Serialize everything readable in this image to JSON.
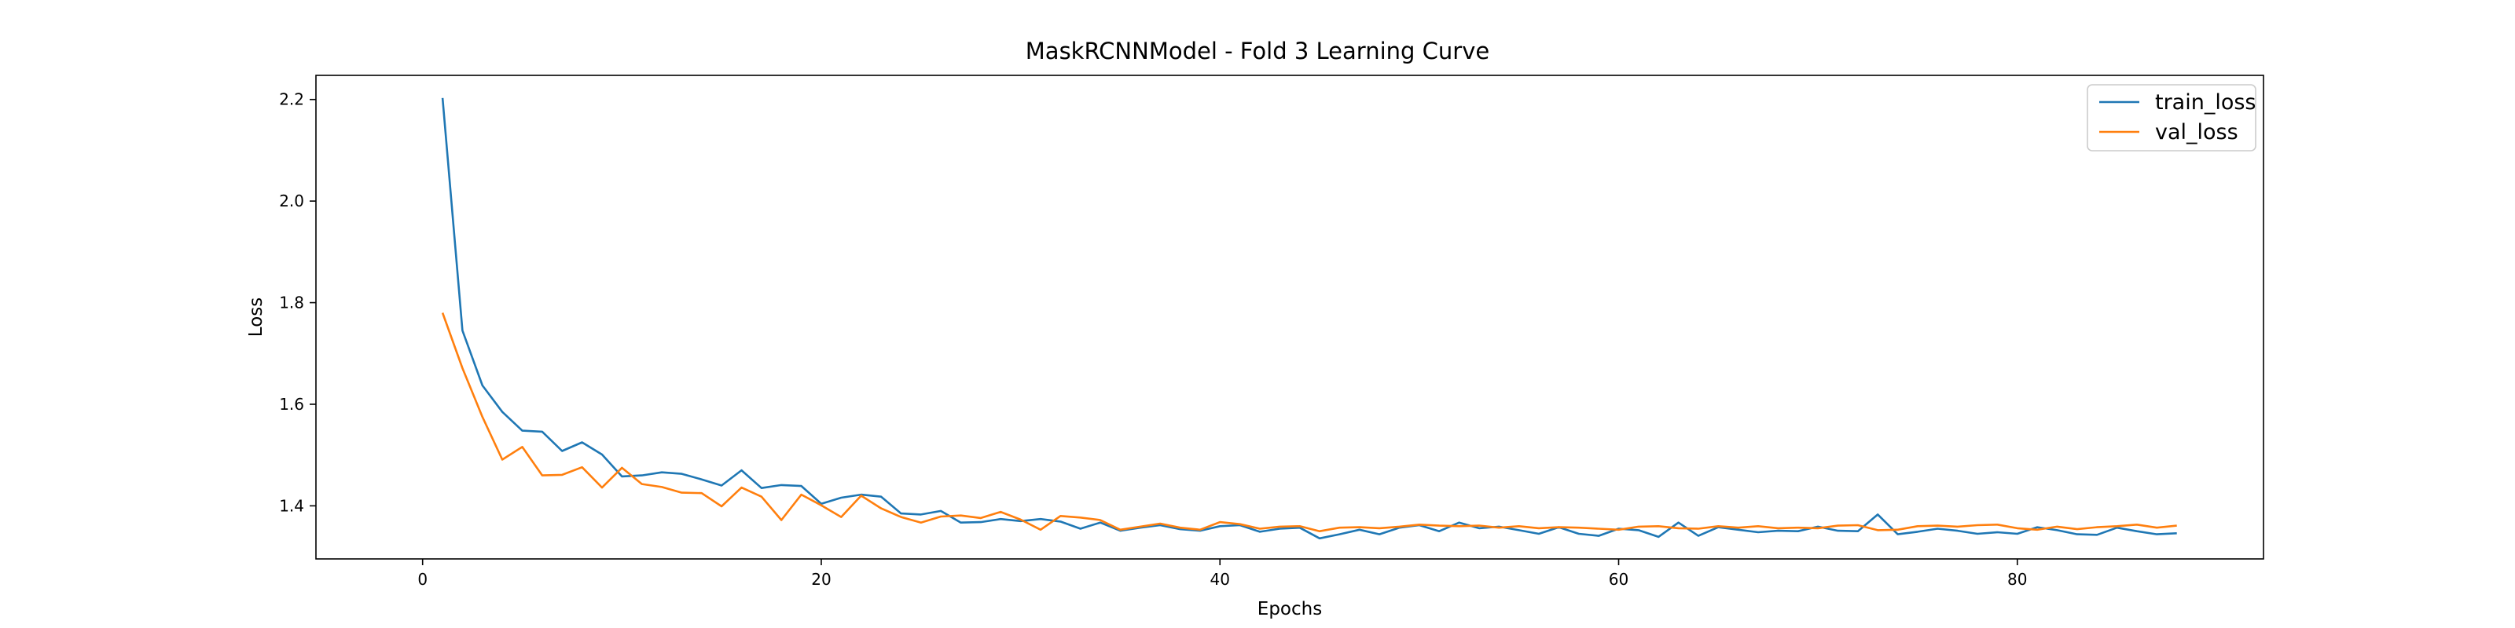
{
  "chart_data": {
    "type": "line",
    "title": "MaskRCNNModel - Fold 3 Learning Curve",
    "xlabel": "Epochs",
    "ylabel": "Loss",
    "xlim": [
      -5.35,
      92.35
    ],
    "ylim": [
      1.2955,
      2.2475
    ],
    "xticks": [
      0,
      20,
      40,
      60,
      80
    ],
    "yticks": [
      1.4,
      1.6,
      1.8,
      2.0,
      2.2
    ],
    "yticks_labels": [
      "1.4",
      "1.6",
      "1.8",
      "2.0",
      "2.2"
    ],
    "legend_position": "top-right",
    "grid": false,
    "x": [
      1,
      2,
      3,
      4,
      5,
      6,
      7,
      8,
      9,
      10,
      11,
      12,
      13,
      14,
      15,
      16,
      17,
      18,
      19,
      20,
      21,
      22,
      23,
      24,
      25,
      26,
      27,
      28,
      29,
      30,
      31,
      32,
      33,
      34,
      35,
      36,
      37,
      38,
      39,
      40,
      41,
      42,
      43,
      44,
      45,
      46,
      47,
      48,
      49,
      50,
      51,
      52,
      53,
      54,
      55,
      56,
      57,
      58,
      59,
      60,
      61,
      62,
      63,
      64,
      65,
      66,
      67,
      68,
      69,
      70,
      71,
      72,
      73,
      74,
      75,
      76,
      77,
      78,
      79,
      80,
      81,
      82,
      83,
      84,
      85,
      86,
      87,
      88
    ],
    "series": [
      {
        "name": "train_loss",
        "color": "#1f77b4",
        "values": [
          2.203,
          1.745,
          1.637,
          1.585,
          1.548,
          1.546,
          1.508,
          1.525,
          1.501,
          1.458,
          1.46,
          1.466,
          1.463,
          1.452,
          1.44,
          1.47,
          1.435,
          1.441,
          1.439,
          1.404,
          1.416,
          1.422,
          1.418,
          1.385,
          1.383,
          1.39,
          1.367,
          1.368,
          1.374,
          1.37,
          1.374,
          1.369,
          1.355,
          1.367,
          1.351,
          1.357,
          1.362,
          1.354,
          1.351,
          1.36,
          1.362,
          1.349,
          1.355,
          1.357,
          1.336,
          1.344,
          1.353,
          1.344,
          1.357,
          1.362,
          1.35,
          1.367,
          1.356,
          1.359,
          1.352,
          1.345,
          1.358,
          1.345,
          1.341,
          1.355,
          1.352,
          1.339,
          1.367,
          1.341,
          1.358,
          1.353,
          1.348,
          1.351,
          1.35,
          1.359,
          1.351,
          1.35,
          1.383,
          1.344,
          1.349,
          1.355,
          1.351,
          1.345,
          1.348,
          1.345,
          1.358,
          1.352,
          1.344,
          1.343,
          1.357,
          1.35,
          1.344,
          1.346
        ]
      },
      {
        "name": "val_loss",
        "color": "#ff7f0e",
        "values": [
          1.78,
          1.671,
          1.575,
          1.491,
          1.516,
          1.46,
          1.461,
          1.476,
          1.436,
          1.475,
          1.443,
          1.437,
          1.426,
          1.425,
          1.399,
          1.436,
          1.418,
          1.372,
          1.422,
          1.401,
          1.378,
          1.42,
          1.395,
          1.378,
          1.367,
          1.379,
          1.381,
          1.376,
          1.388,
          1.373,
          1.353,
          1.38,
          1.377,
          1.372,
          1.353,
          1.359,
          1.365,
          1.357,
          1.353,
          1.368,
          1.364,
          1.355,
          1.359,
          1.36,
          1.35,
          1.357,
          1.358,
          1.356,
          1.359,
          1.363,
          1.361,
          1.36,
          1.361,
          1.357,
          1.36,
          1.356,
          1.358,
          1.357,
          1.355,
          1.353,
          1.359,
          1.36,
          1.356,
          1.355,
          1.36,
          1.357,
          1.36,
          1.356,
          1.357,
          1.356,
          1.361,
          1.362,
          1.352,
          1.353,
          1.36,
          1.361,
          1.359,
          1.362,
          1.363,
          1.356,
          1.353,
          1.359,
          1.354,
          1.358,
          1.36,
          1.363,
          1.357,
          1.361
        ]
      }
    ]
  }
}
